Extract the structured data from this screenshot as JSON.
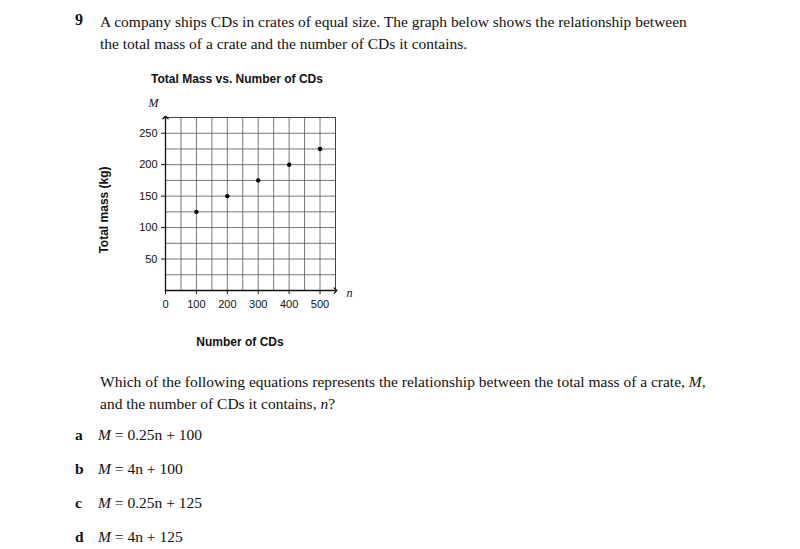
{
  "question": {
    "number": "9",
    "text": [
      "A company ships CDs in crates of equal size. The graph below shows the relationship between",
      "the total mass of a crate and the number of CDs it contains."
    ],
    "prompt": [
      "Which of the following equations represents the relationship between the total mass of a crate, M,",
      "and the number of CDs it contains, n?"
    ],
    "options": [
      {
        "letter": "a",
        "text": "M = 0.25n + 100"
      },
      {
        "letter": "b",
        "text": "M = 4n + 100"
      },
      {
        "letter": "c",
        "text": "M = 0.25n + 125"
      },
      {
        "letter": "d",
        "text": "M = 4n + 125"
      }
    ]
  },
  "chart_data": {
    "type": "scatter",
    "title": "Total Mass vs. Number of CDs",
    "xlabel": "Number of CDs",
    "ylabel": "Total mass (kg)",
    "annotations": [
      {
        "text": "M",
        "axis": "y"
      },
      {
        "text": "n",
        "axis": "x"
      }
    ],
    "x": [
      100,
      200,
      300,
      400,
      500
    ],
    "values": [
      125,
      150,
      175,
      200,
      225
    ],
    "color": "#000000",
    "marker": "circle",
    "xlim": [
      0,
      550
    ],
    "ylim": [
      0,
      275
    ],
    "xticks": [
      0,
      100,
      200,
      300,
      400,
      500
    ],
    "yticks": [
      50,
      100,
      150,
      200,
      250
    ],
    "grid": true
  }
}
